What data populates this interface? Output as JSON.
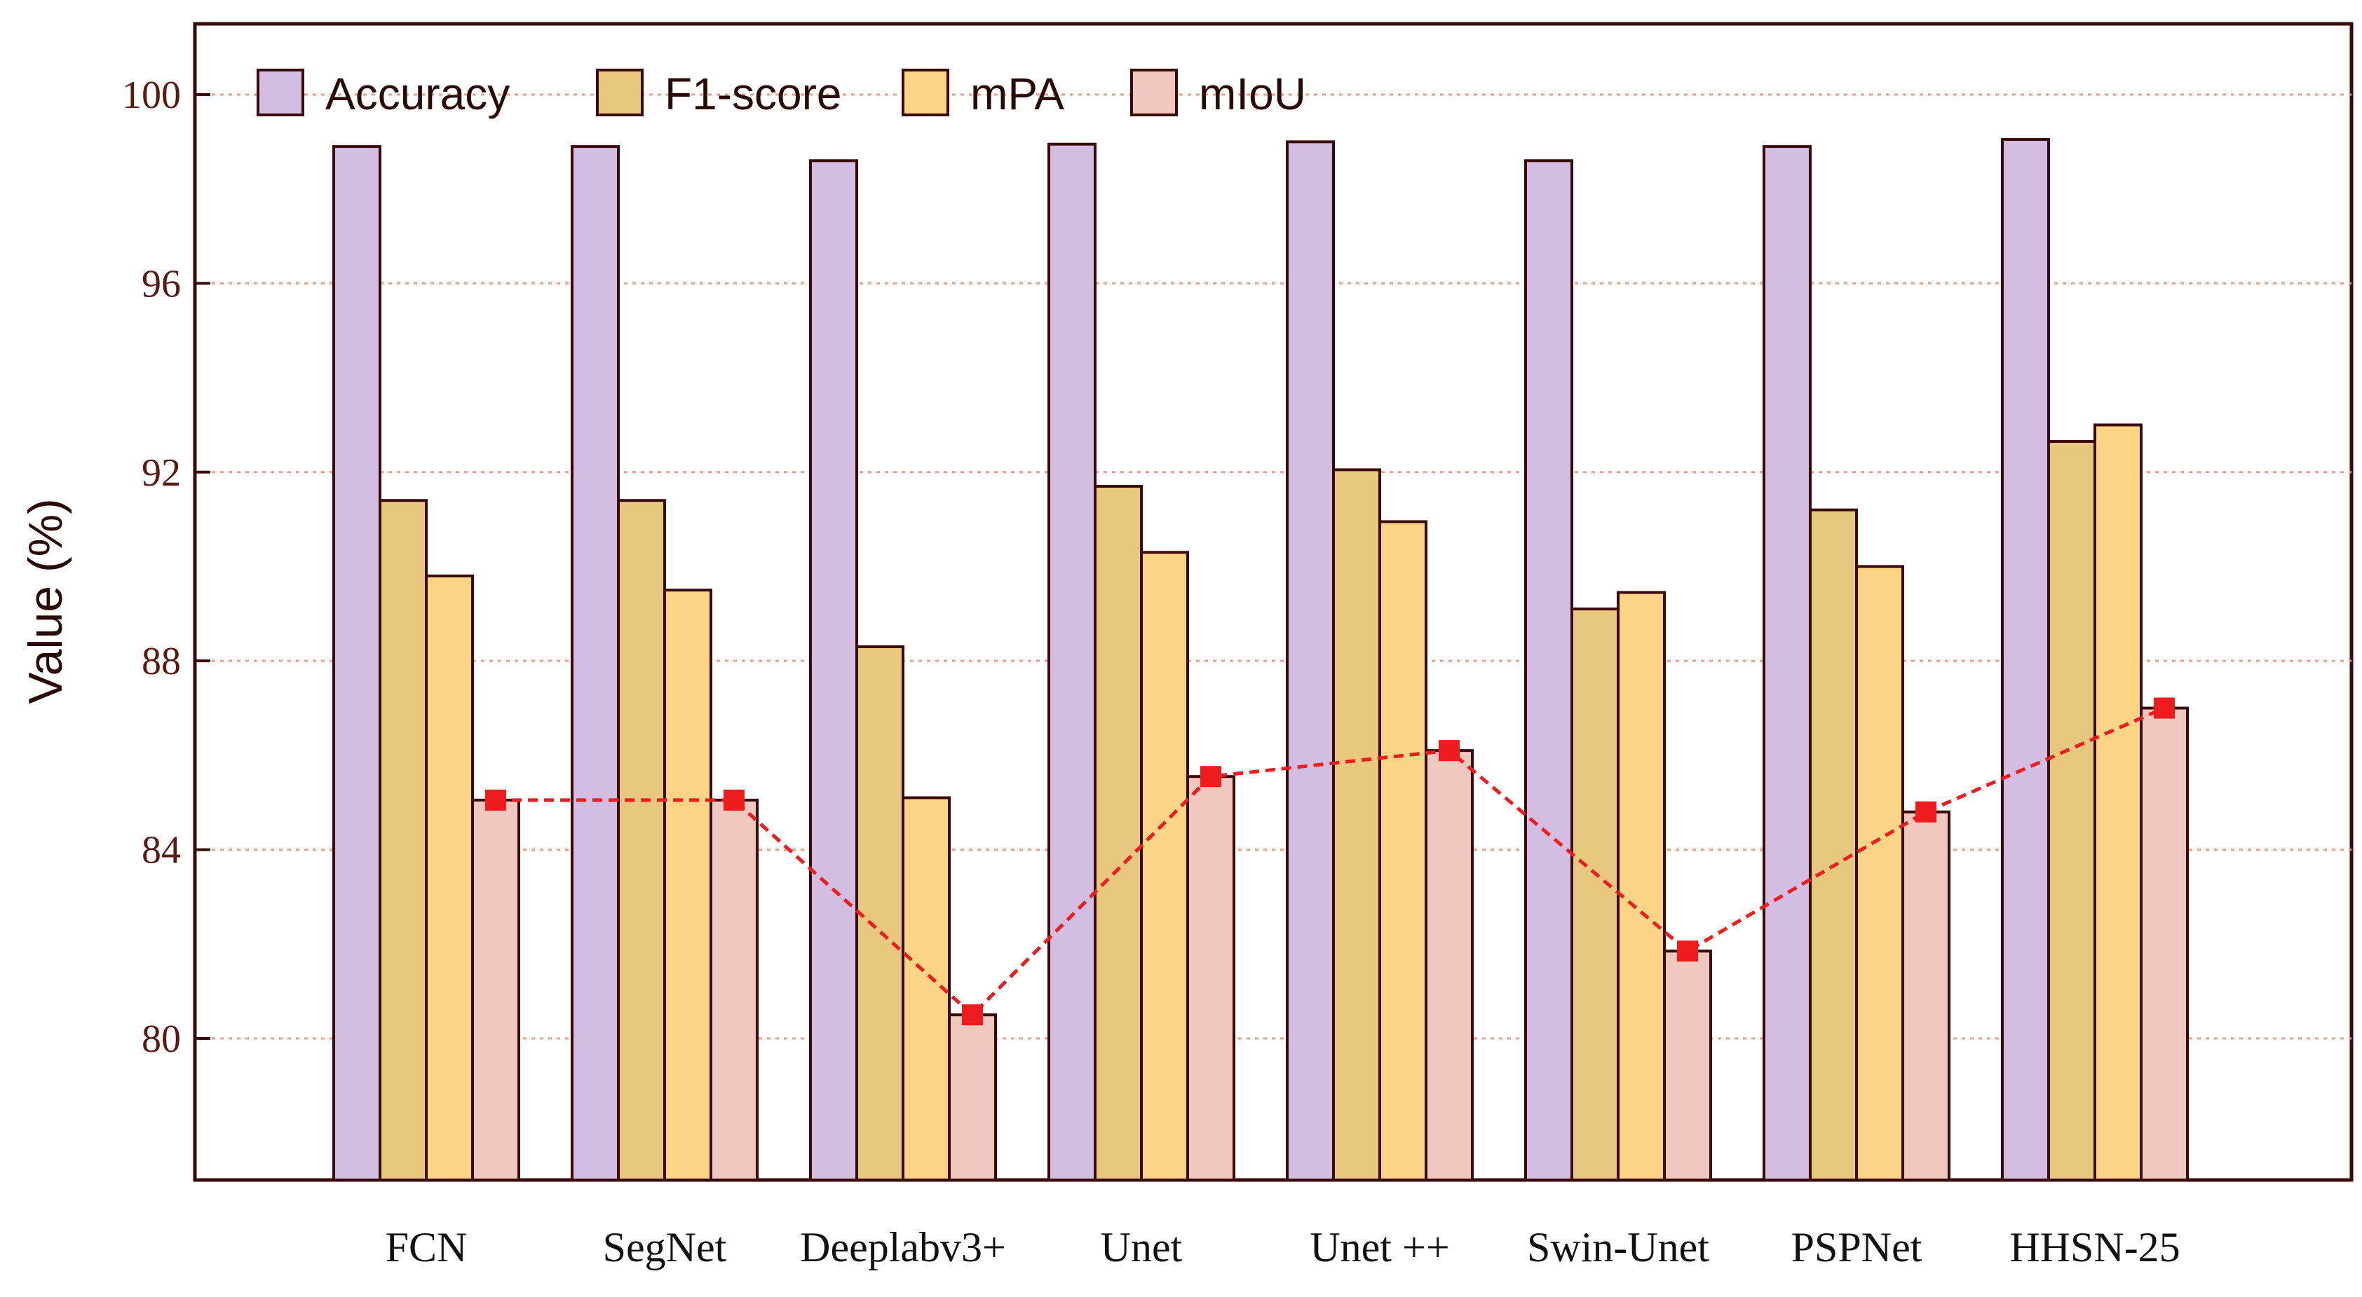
{
  "chart_data": {
    "type": "bar",
    "title": "",
    "xlabel": "",
    "ylabel": "Value (%)",
    "ylim": [
      77,
      101.5
    ],
    "yticks": [
      80,
      84,
      88,
      92,
      96,
      100
    ],
    "grid": true,
    "legend_position": "top-left",
    "categories": [
      "FCN",
      "SegNet",
      "Deeplabv3+",
      "Unet",
      "Unet ++",
      "Swin-Unet",
      "PSPNet",
      "HHSN-25"
    ],
    "series": [
      {
        "name": "Accuracy",
        "color": "#d4bde2",
        "values": [
          98.9,
          98.9,
          98.6,
          98.95,
          99.0,
          98.6,
          98.9,
          99.05
        ]
      },
      {
        "name": "F1-score",
        "color": "#e8c77e",
        "values": [
          91.4,
          91.4,
          88.3,
          91.7,
          92.05,
          89.1,
          91.2,
          92.65
        ]
      },
      {
        "name": "mPA",
        "color": "#fbd585",
        "values": [
          89.8,
          89.5,
          85.1,
          90.3,
          90.95,
          89.45,
          90.0,
          93.0
        ]
      },
      {
        "name": "mIoU",
        "color": "#f0c8bf",
        "values": [
          85.05,
          85.05,
          80.5,
          85.55,
          86.1,
          81.85,
          84.8,
          87.0
        ]
      }
    ],
    "line": {
      "series": "mIoU",
      "color": "#ee1c1c",
      "style": "dashed",
      "marker": "square"
    }
  }
}
